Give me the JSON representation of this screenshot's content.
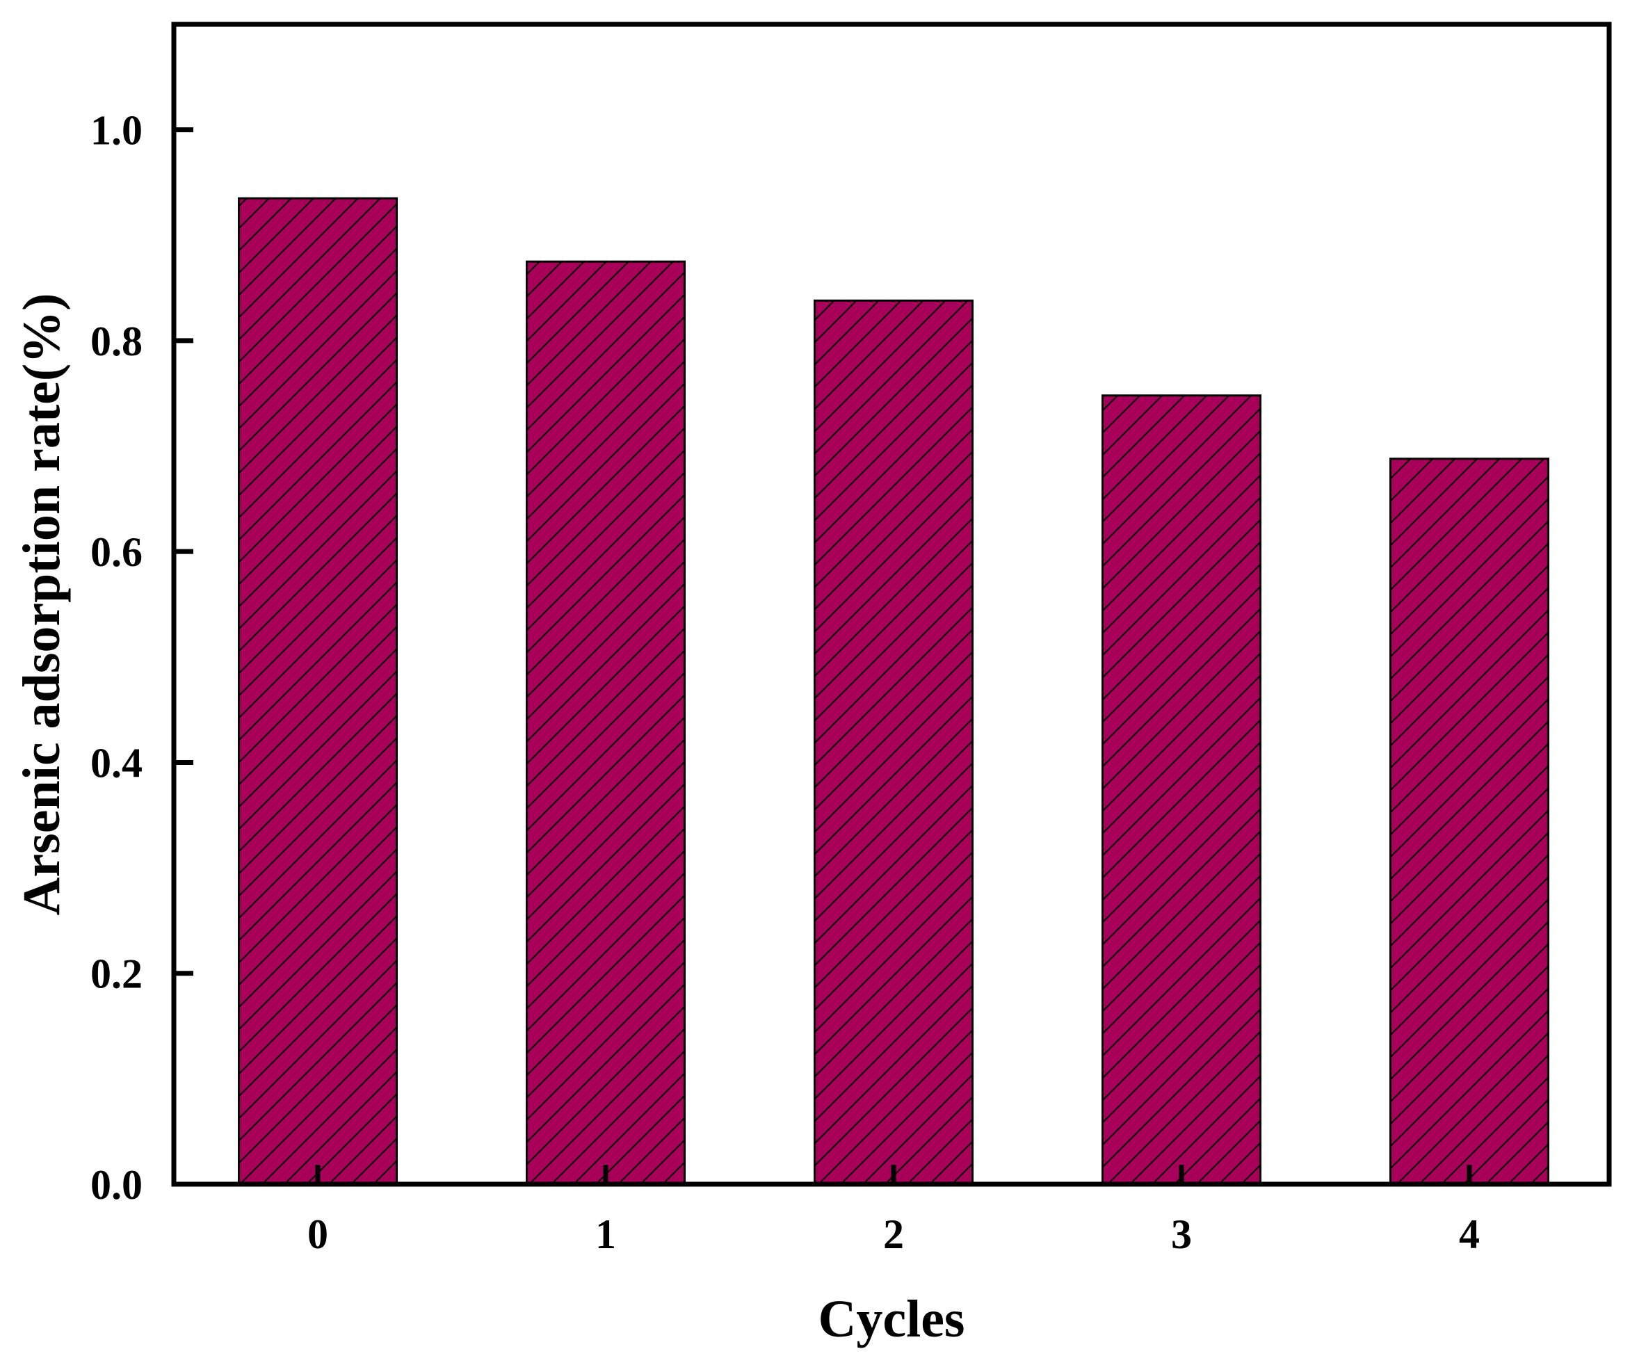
{
  "chart_data": {
    "type": "bar",
    "title": "",
    "xlabel": "Cycles",
    "ylabel": "Arsenic adsorption rate(%)",
    "categories": [
      "0",
      "1",
      "2",
      "3",
      "4"
    ],
    "values": [
      0.935,
      0.875,
      0.838,
      0.748,
      0.688
    ],
    "ylim": [
      0,
      1.1
    ],
    "yticks": [
      0.0,
      0.2,
      0.4,
      0.6,
      0.8,
      1.0
    ],
    "ytick_labels": [
      "0.0",
      "0.2",
      "0.4",
      "0.6",
      "0.8",
      "1.0"
    ],
    "grid": false,
    "legend": "none",
    "bar_color": "#a8005a",
    "bar_pattern": "diagonal-hatch"
  }
}
